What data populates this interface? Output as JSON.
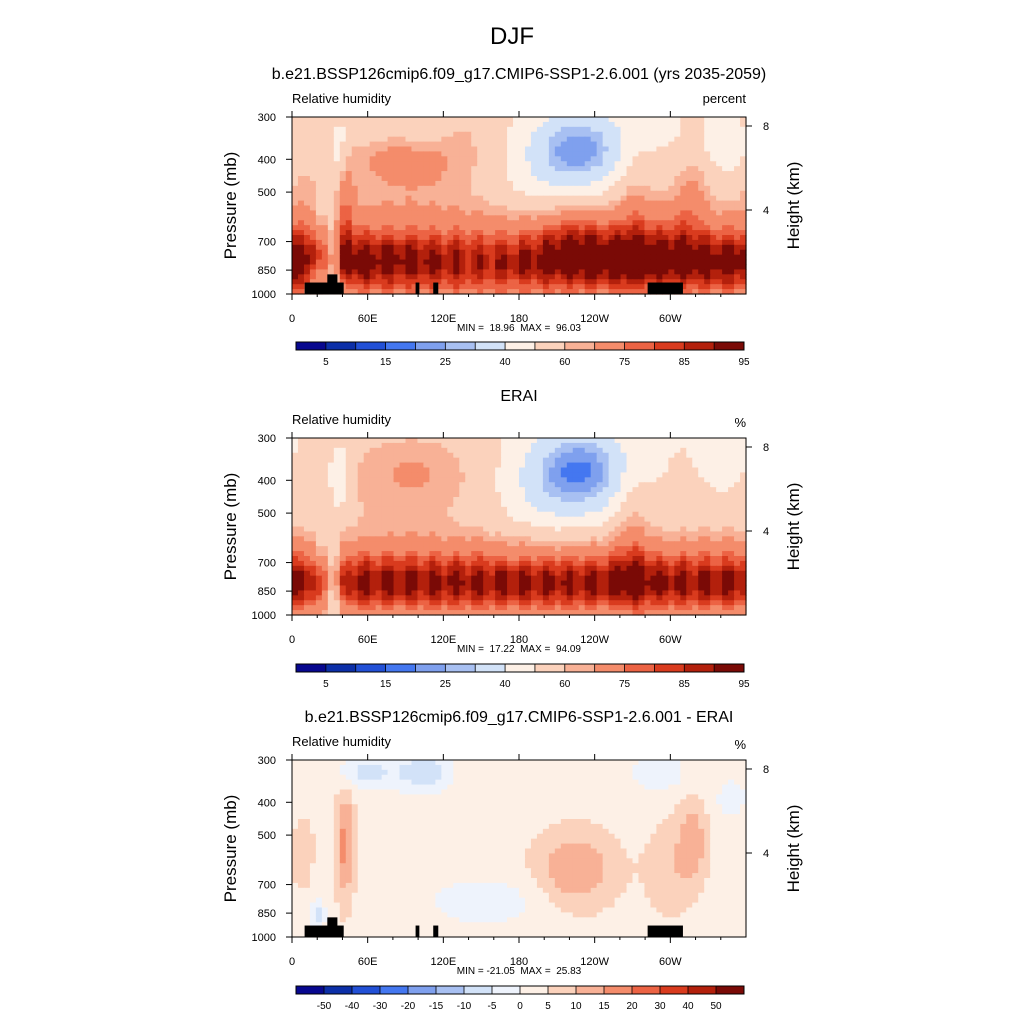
{
  "main_title": "DJF",
  "chart_data": [
    {
      "type": "heatmap",
      "title": "b.e21.BSSP126cmip6.f09_g17.CMIP6-SSP1-2.6.001 (yrs 2035-2059)",
      "left_label": "Relative humidity",
      "right_label": "percent",
      "ylabel": "Pressure (mb)",
      "ylabel_right": "Height (km)",
      "x_ticks": [
        "0",
        "60E",
        "120E",
        "180",
        "120W",
        "60W"
      ],
      "x_tick_positions": [
        0,
        60,
        120,
        180,
        240,
        300
      ],
      "xlim": [
        0,
        360
      ],
      "y_ticks": [
        "300",
        "400",
        "500",
        "700",
        "850",
        "1000"
      ],
      "y_tick_values": [
        300,
        400,
        500,
        700,
        850,
        1000
      ],
      "ylim": [
        1000,
        300
      ],
      "y_scale": "log",
      "y_right_ticks": [
        "8",
        "4"
      ],
      "y_right_values": [
        8,
        4
      ],
      "stats": "MIN =  18.96  MAX =  96.03",
      "min": 18.96,
      "max": 96.03,
      "colorbar_labels": [
        "5",
        "15",
        "25",
        "40",
        "60",
        "75",
        "85",
        "95"
      ],
      "field": "total"
    },
    {
      "type": "heatmap",
      "title": "ERAI",
      "left_label": "Relative humidity",
      "right_label": "%",
      "ylabel": "Pressure (mb)",
      "ylabel_right": "Height (km)",
      "x_ticks": [
        "0",
        "60E",
        "120E",
        "180",
        "120W",
        "60W"
      ],
      "x_tick_positions": [
        0,
        60,
        120,
        180,
        240,
        300
      ],
      "xlim": [
        0,
        360
      ],
      "y_ticks": [
        "300",
        "400",
        "500",
        "700",
        "850",
        "1000"
      ],
      "y_tick_values": [
        300,
        400,
        500,
        700,
        850,
        1000
      ],
      "ylim": [
        1000,
        300
      ],
      "y_scale": "log",
      "y_right_ticks": [
        "8",
        "4"
      ],
      "y_right_values": [
        8,
        4
      ],
      "stats": "MIN =  17.22  MAX =  94.09",
      "min": 17.22,
      "max": 94.09,
      "colorbar_labels": [
        "5",
        "15",
        "25",
        "40",
        "60",
        "75",
        "85",
        "95"
      ],
      "field": "obs"
    },
    {
      "type": "heatmap",
      "title": "b.e21.BSSP126cmip6.f09_g17.CMIP6-SSP1-2.6.001 - ERAI",
      "left_label": "Relative humidity",
      "right_label": "%",
      "ylabel": "Pressure (mb)",
      "ylabel_right": "Height (km)",
      "x_ticks": [
        "0",
        "60E",
        "120E",
        "180",
        "120W",
        "60W"
      ],
      "x_tick_positions": [
        0,
        60,
        120,
        180,
        240,
        300
      ],
      "xlim": [
        0,
        360
      ],
      "y_ticks": [
        "300",
        "400",
        "500",
        "700",
        "850",
        "1000"
      ],
      "y_tick_values": [
        300,
        400,
        500,
        700,
        850,
        1000
      ],
      "ylim": [
        1000,
        300
      ],
      "y_scale": "log",
      "y_right_ticks": [
        "8",
        "4"
      ],
      "y_right_values": [
        8,
        4
      ],
      "stats": "MIN = -21.05  MAX =  25.83",
      "min": -21.05,
      "max": 25.83,
      "colorbar_labels": [
        "-50",
        "-40",
        "-30",
        "-20",
        "-15",
        "-10",
        "-5",
        "0",
        "5",
        "10",
        "15",
        "20",
        "30",
        "40",
        "50"
      ],
      "field": "diff"
    }
  ],
  "colors": {
    "absolute_palette": [
      "#08088f",
      "#0c2fa8",
      "#2250d6",
      "#4477f0",
      "#7fa0ee",
      "#a8c0f2",
      "#d2e2f8",
      "#fdf0e6",
      "#fbd2bc",
      "#f8b196",
      "#f48c6b",
      "#ec6344",
      "#d93b1e",
      "#b3200c",
      "#7a0a06"
    ],
    "difference_palette": [
      "#08088f",
      "#0c2fa8",
      "#2250d6",
      "#4477f0",
      "#7fa0ee",
      "#a8c0f2",
      "#d2e2f8",
      "#eef3fc",
      "#fdf0e6",
      "#fbd2bc",
      "#f8b196",
      "#f48c6b",
      "#ec6344",
      "#d93b1e",
      "#b3200c",
      "#7a0a06"
    ],
    "topography": "#000000"
  }
}
